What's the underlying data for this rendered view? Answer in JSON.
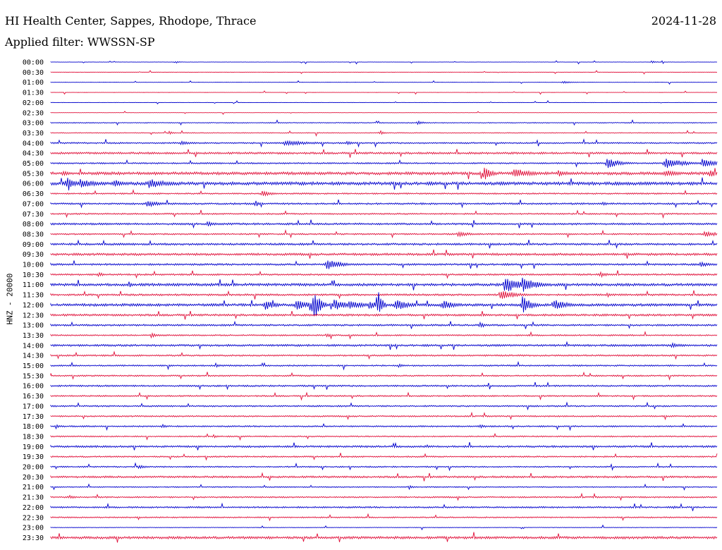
{
  "header": {
    "title": "HI Health Center, Sappes, Rhodope, Thrace",
    "date": "2024-11-28",
    "filter_line": "Applied filter: WWSSN-SP"
  },
  "chart_data": {
    "type": "line",
    "ylabel": "HNZ - 20000",
    "row_labels": [
      "00:00",
      "00:30",
      "01:00",
      "01:30",
      "02:00",
      "02:30",
      "03:00",
      "03:30",
      "04:00",
      "04:30",
      "05:00",
      "05:30",
      "06:00",
      "06:30",
      "07:00",
      "07:30",
      "08:00",
      "08:30",
      "09:00",
      "09:30",
      "10:00",
      "10:30",
      "11:00",
      "11:30",
      "12:00",
      "12:30",
      "13:00",
      "13:30",
      "14:00",
      "14:30",
      "15:00",
      "15:30",
      "16:00",
      "16:30",
      "17:00",
      "17:30",
      "18:00",
      "18:30",
      "19:00",
      "19:30",
      "20:00",
      "20:30",
      "21:00",
      "21:30",
      "22:00",
      "22:30",
      "23:00",
      "23:30"
    ],
    "trace_colors": [
      "#0000cc",
      "#e0103a"
    ],
    "row_duration_minutes": 30,
    "noise_level": [
      0.2,
      0.2,
      0.2,
      0.2,
      0.2,
      0.2,
      0.6,
      0.6,
      1.0,
      1.4,
      1.0,
      2.0,
      2.2,
      1.0,
      1.2,
      1.0,
      1.3,
      1.0,
      1.4,
      1.6,
      1.3,
      1.2,
      1.8,
      1.3,
      1.8,
      1.4,
      1.2,
      1.0,
      1.4,
      1.1,
      1.0,
      1.0,
      1.1,
      1.0,
      1.0,
      1.0,
      1.0,
      0.9,
      1.3,
      1.0,
      0.9,
      1.3,
      0.7,
      1.0,
      1.1,
      0.9,
      0.4,
      1.7
    ],
    "events": [
      {
        "row": 0,
        "minute": 5.6,
        "amplitude": 2,
        "duration": 0.2
      },
      {
        "row": 0,
        "minute": 27.0,
        "amplitude": 2,
        "duration": 0.3
      },
      {
        "row": 2,
        "minute": 23.0,
        "amplitude": 2,
        "duration": 0.4
      },
      {
        "row": 6,
        "minute": 16.5,
        "amplitude": 3,
        "duration": 0.3
      },
      {
        "row": 7,
        "minute": 5.3,
        "amplitude": 3,
        "duration": 0.2
      },
      {
        "row": 7,
        "minute": 14.8,
        "amplitude": 4,
        "duration": 0.2
      },
      {
        "row": 8,
        "minute": 5.8,
        "amplitude": 3,
        "duration": 0.6
      },
      {
        "row": 8,
        "minute": 10.5,
        "amplitude": 4,
        "duration": 1.2
      },
      {
        "row": 8,
        "minute": 13.3,
        "amplitude": 3,
        "duration": 0.4
      },
      {
        "row": 10,
        "minute": 25.0,
        "amplitude": 8,
        "duration": 0.6
      },
      {
        "row": 10,
        "minute": 27.6,
        "amplitude": 9,
        "duration": 0.8
      },
      {
        "row": 10,
        "minute": 29.3,
        "amplitude": 8,
        "duration": 0.6
      },
      {
        "row": 11,
        "minute": 0.5,
        "amplitude": 4,
        "duration": 0.4
      },
      {
        "row": 11,
        "minute": 19.5,
        "amplitude": 14,
        "duration": 0.3
      },
      {
        "row": 11,
        "minute": 20.8,
        "amplitude": 8,
        "duration": 0.8
      },
      {
        "row": 11,
        "minute": 22.8,
        "amplitude": 5,
        "duration": 0.6
      },
      {
        "row": 11,
        "minute": 27.6,
        "amplitude": 6,
        "duration": 0.6
      },
      {
        "row": 11,
        "minute": 29.6,
        "amplitude": 6,
        "duration": 0.5
      },
      {
        "row": 12,
        "minute": 0.7,
        "amplitude": 14,
        "duration": 0.3
      },
      {
        "row": 12,
        "minute": 1.3,
        "amplitude": 7,
        "duration": 0.8
      },
      {
        "row": 12,
        "minute": 2.8,
        "amplitude": 6,
        "duration": 0.6
      },
      {
        "row": 12,
        "minute": 4.4,
        "amplitude": 8,
        "duration": 0.8
      },
      {
        "row": 13,
        "minute": 9.5,
        "amplitude": 5,
        "duration": 0.4
      },
      {
        "row": 14,
        "minute": 4.3,
        "amplitude": 5,
        "duration": 0.6
      },
      {
        "row": 14,
        "minute": 9.2,
        "amplitude": 6,
        "duration": 0.2
      },
      {
        "row": 14,
        "minute": 24.8,
        "amplitude": 3,
        "duration": 0.3
      },
      {
        "row": 16,
        "minute": 7.0,
        "amplitude": 4,
        "duration": 0.4
      },
      {
        "row": 17,
        "minute": 18.3,
        "amplitude": 4,
        "duration": 0.6
      },
      {
        "row": 17,
        "minute": 29.4,
        "amplitude": 5,
        "duration": 0.6
      },
      {
        "row": 20,
        "minute": 12.4,
        "amplitude": 9,
        "duration": 0.6
      },
      {
        "row": 20,
        "minute": 29.2,
        "amplitude": 4,
        "duration": 0.5
      },
      {
        "row": 21,
        "minute": 2.1,
        "amplitude": 4,
        "duration": 0.3
      },
      {
        "row": 21,
        "minute": 24.7,
        "amplitude": 5,
        "duration": 0.3
      },
      {
        "row": 22,
        "minute": 3.5,
        "amplitude": 5,
        "duration": 0.2
      },
      {
        "row": 22,
        "minute": 20.4,
        "amplitude": 14,
        "duration": 0.6
      },
      {
        "row": 22,
        "minute": 21.2,
        "amplitude": 12,
        "duration": 0.6
      },
      {
        "row": 23,
        "minute": 20.2,
        "amplitude": 8,
        "duration": 0.7
      },
      {
        "row": 23,
        "minute": 25.0,
        "amplitude": 4,
        "duration": 0.3
      },
      {
        "row": 24,
        "minute": 9.6,
        "amplitude": 8,
        "duration": 0.5
      },
      {
        "row": 24,
        "minute": 11.0,
        "amplitude": 9,
        "duration": 0.6
      },
      {
        "row": 24,
        "minute": 11.8,
        "amplitude": 26,
        "duration": 0.3
      },
      {
        "row": 24,
        "minute": 12.7,
        "amplitude": 9,
        "duration": 0.6
      },
      {
        "row": 24,
        "minute": 13.4,
        "amplitude": 8,
        "duration": 0.6
      },
      {
        "row": 24,
        "minute": 14.3,
        "amplitude": 7,
        "duration": 0.5
      },
      {
        "row": 24,
        "minute": 14.7,
        "amplitude": 28,
        "duration": 0.2
      },
      {
        "row": 24,
        "minute": 15.5,
        "amplitude": 9,
        "duration": 0.6
      },
      {
        "row": 24,
        "minute": 17.6,
        "amplitude": 8,
        "duration": 0.6
      },
      {
        "row": 24,
        "minute": 21.2,
        "amplitude": 16,
        "duration": 0.4
      },
      {
        "row": 24,
        "minute": 22.6,
        "amplitude": 9,
        "duration": 0.6
      },
      {
        "row": 26,
        "minute": 19.3,
        "amplitude": 6,
        "duration": 0.2
      },
      {
        "row": 27,
        "minute": 4.5,
        "amplitude": 4,
        "duration": 0.3
      },
      {
        "row": 27,
        "minute": 12.4,
        "amplitude": 4,
        "duration": 0.2
      },
      {
        "row": 28,
        "minute": 27.9,
        "amplitude": 4,
        "duration": 0.6
      },
      {
        "row": 30,
        "minute": 7.4,
        "amplitude": 4,
        "duration": 0.2
      },
      {
        "row": 30,
        "minute": 15.6,
        "amplitude": 3,
        "duration": 0.3
      },
      {
        "row": 36,
        "minute": 0.2,
        "amplitude": 4,
        "duration": 0.2
      },
      {
        "row": 36,
        "minute": 5.0,
        "amplitude": 4,
        "duration": 0.2
      },
      {
        "row": 36,
        "minute": 19.3,
        "amplitude": 3,
        "duration": 0.3
      },
      {
        "row": 37,
        "minute": 7.3,
        "amplitude": 3,
        "duration": 0.2
      },
      {
        "row": 38,
        "minute": 16.9,
        "amplitude": 3,
        "duration": 0.2
      },
      {
        "row": 40,
        "minute": 3.9,
        "amplitude": 3,
        "duration": 0.4
      },
      {
        "row": 42,
        "minute": 16.1,
        "amplitude": 4,
        "duration": 0.2
      },
      {
        "row": 43,
        "minute": 0.8,
        "amplitude": 3,
        "duration": 0.3
      },
      {
        "row": 44,
        "minute": 28.0,
        "amplitude": 3,
        "duration": 0.2
      }
    ]
  }
}
